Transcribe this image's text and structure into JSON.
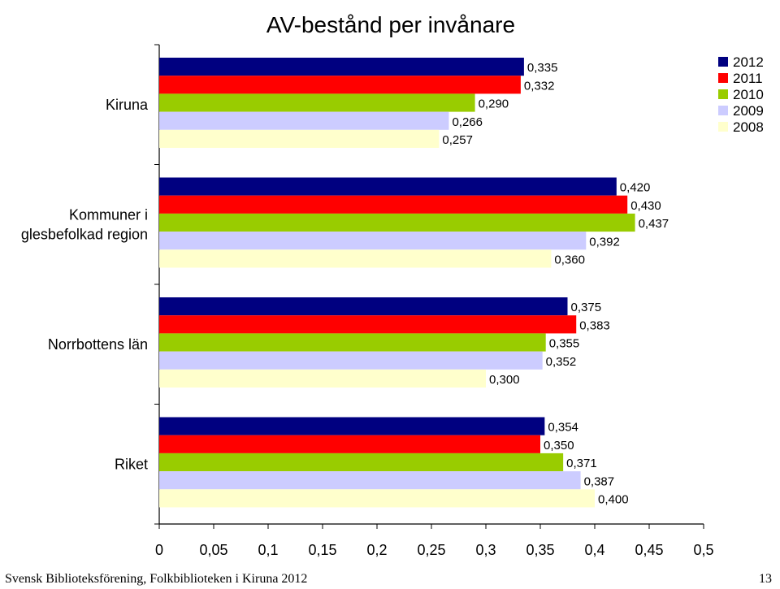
{
  "chart_data": {
    "type": "bar",
    "orientation": "horizontal",
    "title": "AV-bestånd per invånare",
    "categories": [
      [
        "Kiruna"
      ],
      [
        "Kommuner i",
        "glesbefolkad region"
      ],
      [
        "Norrbottens län"
      ],
      [
        "Riket"
      ]
    ],
    "series": [
      {
        "name": "2012",
        "color": "#000080",
        "values": [
          0.335,
          0.42,
          0.375,
          0.354
        ],
        "labels": [
          "0,335",
          "0,420",
          "0,375",
          "0,354"
        ]
      },
      {
        "name": "2011",
        "color": "#ff0000",
        "values": [
          0.332,
          0.43,
          0.383,
          0.35
        ],
        "labels": [
          "0,332",
          "0,430",
          "0,383",
          "0,350"
        ]
      },
      {
        "name": "2010",
        "color": "#99cc00",
        "values": [
          0.29,
          0.437,
          0.355,
          0.371
        ],
        "labels": [
          "0,290",
          "0,437",
          "0,355",
          "0,371"
        ]
      },
      {
        "name": "2009",
        "color": "#ccccff",
        "values": [
          0.266,
          0.392,
          0.352,
          0.387
        ],
        "labels": [
          "0,266",
          "0,392",
          "0,352",
          "0,387"
        ]
      },
      {
        "name": "2008",
        "color": "#ffffcc",
        "values": [
          0.257,
          0.36,
          0.3,
          0.4
        ],
        "labels": [
          "0,257",
          "0,360",
          "0,300",
          "0,400"
        ]
      }
    ],
    "xlim": [
      0,
      0.5
    ],
    "x_ticks": [
      "0",
      "0,05",
      "0,1",
      "0,15",
      "0,2",
      "0,25",
      "0,3",
      "0,35",
      "0,4",
      "0,45",
      "0,5"
    ],
    "grid": false,
    "legend_position": "top-right"
  },
  "footer": {
    "left": "Svensk Biblioteksförening, Folkbiblioteken i Kiruna 2012",
    "page_number": "13"
  }
}
